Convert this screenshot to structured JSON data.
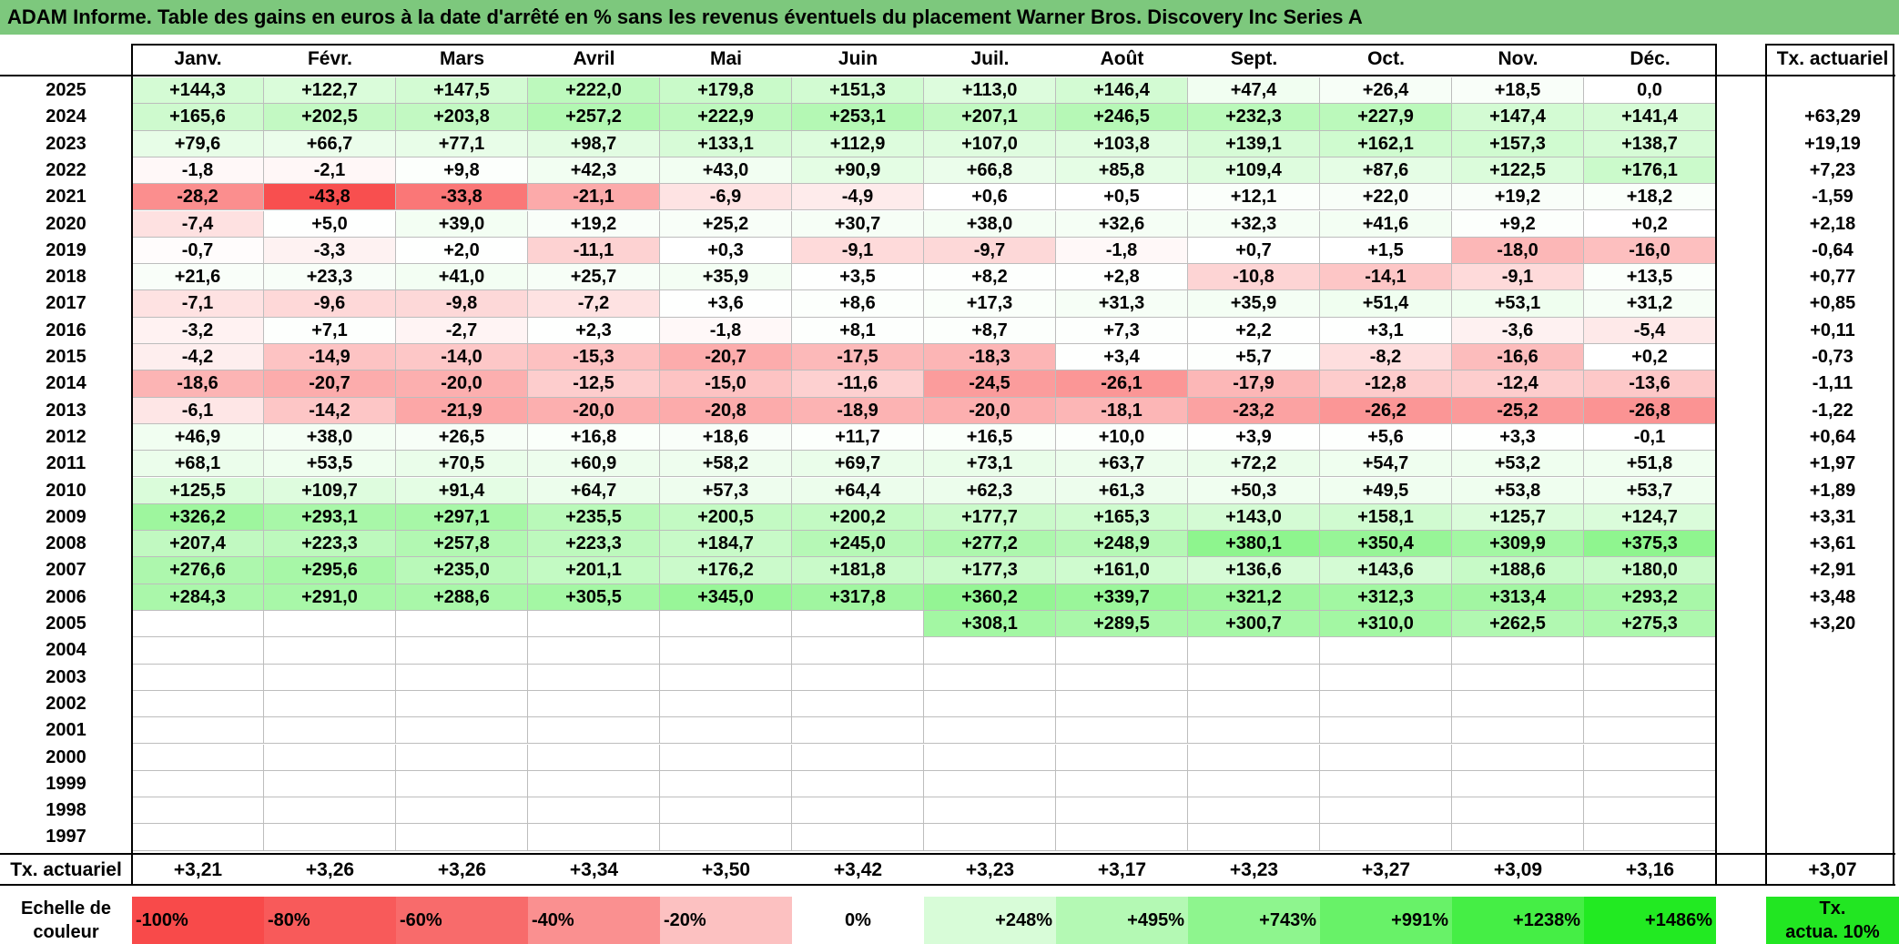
{
  "title": "ADAM Informe. Table des gains en euros à la date d'arrêté en % sans les revenus éventuels du placement Warner Bros. Discovery Inc Series A",
  "months": [
    "Janv.",
    "Févr.",
    "Mars",
    "Avril",
    "Mai",
    "Juin",
    "Juil.",
    "Août",
    "Sept.",
    "Oct.",
    "Nov.",
    "Déc."
  ],
  "rate_header": "Tx. actuariel",
  "rows": [
    {
      "year": "2025",
      "values": [
        "+144,3",
        "+122,7",
        "+147,5",
        "+222,0",
        "+179,8",
        "+151,3",
        "+113,0",
        "+146,4",
        "+47,4",
        "+26,4",
        "+18,5",
        "0,0"
      ],
      "rate": ""
    },
    {
      "year": "2024",
      "values": [
        "+165,6",
        "+202,5",
        "+203,8",
        "+257,2",
        "+222,9",
        "+253,1",
        "+207,1",
        "+246,5",
        "+232,3",
        "+227,9",
        "+147,4",
        "+141,4"
      ],
      "rate": "+63,29"
    },
    {
      "year": "2023",
      "values": [
        "+79,6",
        "+66,7",
        "+77,1",
        "+98,7",
        "+133,1",
        "+112,9",
        "+107,0",
        "+103,8",
        "+139,1",
        "+162,1",
        "+157,3",
        "+138,7"
      ],
      "rate": "+19,19"
    },
    {
      "year": "2022",
      "values": [
        "-1,8",
        "-2,1",
        "+9,8",
        "+42,3",
        "+43,0",
        "+90,9",
        "+66,8",
        "+85,8",
        "+109,4",
        "+87,6",
        "+122,5",
        "+176,1"
      ],
      "rate": "+7,23"
    },
    {
      "year": "2021",
      "values": [
        "-28,2",
        "-43,8",
        "-33,8",
        "-21,1",
        "-6,9",
        "-4,9",
        "+0,6",
        "+0,5",
        "+12,1",
        "+22,0",
        "+19,2",
        "+18,2"
      ],
      "rate": "-1,59"
    },
    {
      "year": "2020",
      "values": [
        "-7,4",
        "+5,0",
        "+39,0",
        "+19,2",
        "+25,2",
        "+30,7",
        "+38,0",
        "+32,6",
        "+32,3",
        "+41,6",
        "+9,2",
        "+0,2"
      ],
      "rate": "+2,18"
    },
    {
      "year": "2019",
      "values": [
        "-0,7",
        "-3,3",
        "+2,0",
        "-11,1",
        "+0,3",
        "-9,1",
        "-9,7",
        "-1,8",
        "+0,7",
        "+1,5",
        "-18,0",
        "-16,0"
      ],
      "rate": "-0,64"
    },
    {
      "year": "2018",
      "values": [
        "+21,6",
        "+23,3",
        "+41,0",
        "+25,7",
        "+35,9",
        "+3,5",
        "+8,2",
        "+2,8",
        "-10,8",
        "-14,1",
        "-9,1",
        "+13,5"
      ],
      "rate": "+0,77"
    },
    {
      "year": "2017",
      "values": [
        "-7,1",
        "-9,6",
        "-9,8",
        "-7,2",
        "+3,6",
        "+8,6",
        "+17,3",
        "+31,3",
        "+35,9",
        "+51,4",
        "+53,1",
        "+31,2"
      ],
      "rate": "+0,85"
    },
    {
      "year": "2016",
      "values": [
        "-3,2",
        "+7,1",
        "-2,7",
        "+2,3",
        "-1,8",
        "+8,1",
        "+8,7",
        "+7,3",
        "+2,2",
        "+3,1",
        "-3,6",
        "-5,4"
      ],
      "rate": "+0,11"
    },
    {
      "year": "2015",
      "values": [
        "-4,2",
        "-14,9",
        "-14,0",
        "-15,3",
        "-20,7",
        "-17,5",
        "-18,3",
        "+3,4",
        "+5,7",
        "-8,2",
        "-16,6",
        "+0,2"
      ],
      "rate": "-0,73"
    },
    {
      "year": "2014",
      "values": [
        "-18,6",
        "-20,7",
        "-20,0",
        "-12,5",
        "-15,0",
        "-11,6",
        "-24,5",
        "-26,1",
        "-17,9",
        "-12,8",
        "-12,4",
        "-13,6"
      ],
      "rate": "-1,11"
    },
    {
      "year": "2013",
      "values": [
        "-6,1",
        "-14,2",
        "-21,9",
        "-20,0",
        "-20,8",
        "-18,9",
        "-20,0",
        "-18,1",
        "-23,2",
        "-26,2",
        "-25,2",
        "-26,8"
      ],
      "rate": "-1,22"
    },
    {
      "year": "2012",
      "values": [
        "+46,9",
        "+38,0",
        "+26,5",
        "+16,8",
        "+18,6",
        "+11,7",
        "+16,5",
        "+10,0",
        "+3,9",
        "+5,6",
        "+3,3",
        "-0,1"
      ],
      "rate": "+0,64"
    },
    {
      "year": "2011",
      "values": [
        "+68,1",
        "+53,5",
        "+70,5",
        "+60,9",
        "+58,2",
        "+69,7",
        "+73,1",
        "+63,7",
        "+72,2",
        "+54,7",
        "+53,2",
        "+51,8"
      ],
      "rate": "+1,97"
    },
    {
      "year": "2010",
      "values": [
        "+125,5",
        "+109,7",
        "+91,4",
        "+64,7",
        "+57,3",
        "+64,4",
        "+62,3",
        "+61,3",
        "+50,3",
        "+49,5",
        "+53,8",
        "+53,7"
      ],
      "rate": "+1,89"
    },
    {
      "year": "2009",
      "values": [
        "+326,2",
        "+293,1",
        "+297,1",
        "+235,5",
        "+200,5",
        "+200,2",
        "+177,7",
        "+165,3",
        "+143,0",
        "+158,1",
        "+125,7",
        "+124,7"
      ],
      "rate": "+3,31"
    },
    {
      "year": "2008",
      "values": [
        "+207,4",
        "+223,3",
        "+257,8",
        "+223,3",
        "+184,7",
        "+245,0",
        "+277,2",
        "+248,9",
        "+380,1",
        "+350,4",
        "+309,9",
        "+375,3"
      ],
      "rate": "+3,61"
    },
    {
      "year": "2007",
      "values": [
        "+276,6",
        "+295,6",
        "+235,0",
        "+201,1",
        "+176,2",
        "+181,8",
        "+177,3",
        "+161,0",
        "+136,6",
        "+143,6",
        "+188,6",
        "+180,0"
      ],
      "rate": "+2,91"
    },
    {
      "year": "2006",
      "values": [
        "+284,3",
        "+291,0",
        "+288,6",
        "+305,5",
        "+345,0",
        "+317,8",
        "+360,2",
        "+339,7",
        "+321,2",
        "+312,3",
        "+313,4",
        "+293,2"
      ],
      "rate": "+3,48"
    },
    {
      "year": "2005",
      "values": [
        "",
        "",
        "",
        "",
        "",
        "",
        "+308,1",
        "+289,5",
        "+300,7",
        "+310,0",
        "+262,5",
        "+275,3"
      ],
      "rate": "+3,20"
    },
    {
      "year": "2004",
      "values": [
        "",
        "",
        "",
        "",
        "",
        "",
        "",
        "",
        "",
        "",
        "",
        ""
      ],
      "rate": ""
    },
    {
      "year": "2003",
      "values": [
        "",
        "",
        "",
        "",
        "",
        "",
        "",
        "",
        "",
        "",
        "",
        ""
      ],
      "rate": ""
    },
    {
      "year": "2002",
      "values": [
        "",
        "",
        "",
        "",
        "",
        "",
        "",
        "",
        "",
        "",
        "",
        ""
      ],
      "rate": ""
    },
    {
      "year": "2001",
      "values": [
        "",
        "",
        "",
        "",
        "",
        "",
        "",
        "",
        "",
        "",
        "",
        ""
      ],
      "rate": ""
    },
    {
      "year": "2000",
      "values": [
        "",
        "",
        "",
        "",
        "",
        "",
        "",
        "",
        "",
        "",
        "",
        ""
      ],
      "rate": ""
    },
    {
      "year": "1999",
      "values": [
        "",
        "",
        "",
        "",
        "",
        "",
        "",
        "",
        "",
        "",
        "",
        ""
      ],
      "rate": ""
    },
    {
      "year": "1998",
      "values": [
        "",
        "",
        "",
        "",
        "",
        "",
        "",
        "",
        "",
        "",
        "",
        ""
      ],
      "rate": ""
    },
    {
      "year": "1997",
      "values": [
        "",
        "",
        "",
        "",
        "",
        "",
        "",
        "",
        "",
        "",
        "",
        ""
      ],
      "rate": ""
    }
  ],
  "footer": {
    "label": "Tx. actuariel",
    "values": [
      "+3,21",
      "+3,26",
      "+3,26",
      "+3,34",
      "+3,50",
      "+3,42",
      "+3,23",
      "+3,17",
      "+3,23",
      "+3,27",
      "+3,09",
      "+3,16"
    ],
    "rate": "+3,07"
  },
  "legend": {
    "label_line1": "Echelle de",
    "label_line2": "couleur",
    "items": [
      {
        "text": "-100%",
        "color": "#f84a4a"
      },
      {
        "text": "-80%",
        "color": "#f85a5a"
      },
      {
        "text": "-60%",
        "color": "#f86b6b"
      },
      {
        "text": "-40%",
        "color": "#fa9090"
      },
      {
        "text": "-20%",
        "color": "#fcc1c1"
      },
      {
        "text": "0%",
        "color": "#ffffff"
      },
      {
        "text": "+248%",
        "color": "#d8fcd8"
      },
      {
        "text": "+495%",
        "color": "#b4f9b4"
      },
      {
        "text": "+743%",
        "color": "#8ef58e"
      },
      {
        "text": "+991%",
        "color": "#68f268"
      },
      {
        "text": "+1238%",
        "color": "#45ee45"
      },
      {
        "text": "+1486%",
        "color": "#22ea22"
      }
    ],
    "rate_line1": "Tx.",
    "rate_line2": "actua. 10%",
    "rate_color": "#22e622"
  }
}
